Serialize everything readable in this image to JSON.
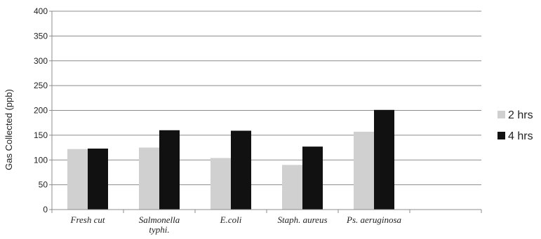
{
  "chart_data": {
    "type": "bar",
    "categories": [
      [
        "Fresh cut"
      ],
      [
        "Salmonella",
        "typhi."
      ],
      [
        "E.coli"
      ],
      [
        "Staph. aureus"
      ],
      [
        "Ps. aeruginosa"
      ],
      [
        ""
      ]
    ],
    "series": [
      {
        "name": "2 hrs",
        "color": "#d0d0d0",
        "values": [
          122,
          125,
          104,
          90,
          157,
          null
        ]
      },
      {
        "name": "4 hrs",
        "color": "#111111",
        "values": [
          123,
          160,
          159,
          127,
          201,
          null
        ]
      }
    ],
    "ylabel": "Gas Collected (ppb)",
    "xlabel": "",
    "ylim": [
      0,
      400
    ],
    "yticks": [
      0,
      50,
      100,
      150,
      200,
      250,
      300,
      350,
      400
    ],
    "grid": true,
    "legend_position": "right"
  }
}
